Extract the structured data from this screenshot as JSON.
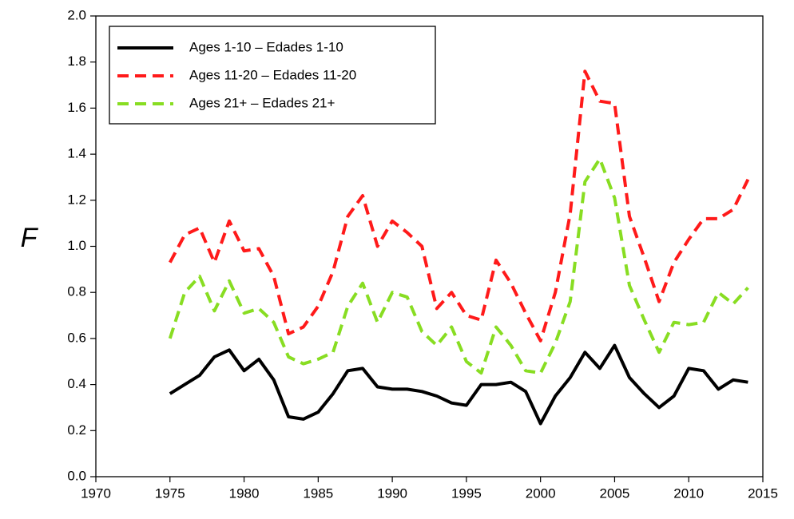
{
  "chart_data": {
    "type": "line",
    "ylabel": "F",
    "x": [
      1975,
      1976,
      1977,
      1978,
      1979,
      1980,
      1981,
      1982,
      1983,
      1984,
      1985,
      1986,
      1987,
      1988,
      1989,
      1990,
      1991,
      1992,
      1993,
      1994,
      1995,
      1996,
      1997,
      1998,
      1999,
      2000,
      2001,
      2002,
      2003,
      2004,
      2005,
      2006,
      2007,
      2008,
      2009,
      2010,
      2011,
      2012,
      2013,
      2014
    ],
    "series": [
      {
        "name": "Ages 1-10 – Edades 1-10",
        "color": "#000000",
        "linestyle": "solid",
        "values": [
          0.36,
          0.4,
          0.44,
          0.52,
          0.55,
          0.46,
          0.51,
          0.42,
          0.26,
          0.25,
          0.28,
          0.36,
          0.46,
          0.47,
          0.39,
          0.38,
          0.38,
          0.37,
          0.35,
          0.32,
          0.31,
          0.4,
          0.4,
          0.41,
          0.37,
          0.23,
          0.35,
          0.43,
          0.54,
          0.47,
          0.57,
          0.43,
          0.36,
          0.3,
          0.35,
          0.47,
          0.46,
          0.38,
          0.42,
          0.41
        ]
      },
      {
        "name": "Ages 11-20 – Edades 11-20",
        "color": "#ff1a1a",
        "linestyle": "dashed",
        "values": [
          0.93,
          1.05,
          1.08,
          0.93,
          1.11,
          0.98,
          0.99,
          0.87,
          0.62,
          0.65,
          0.74,
          0.89,
          1.13,
          1.22,
          1.0,
          1.11,
          1.06,
          1.0,
          0.73,
          0.8,
          0.7,
          0.68,
          0.94,
          0.84,
          0.71,
          0.59,
          0.8,
          1.14,
          1.76,
          1.63,
          1.62,
          1.13,
          0.95,
          0.76,
          0.93,
          1.03,
          1.12,
          1.12,
          1.16,
          1.29
        ]
      },
      {
        "name": "Ages 21+ – Edades 21+",
        "color": "#88dd22",
        "linestyle": "dashed",
        "values": [
          0.6,
          0.8,
          0.87,
          0.72,
          0.85,
          0.71,
          0.73,
          0.67,
          0.52,
          0.49,
          0.51,
          0.54,
          0.74,
          0.84,
          0.67,
          0.8,
          0.78,
          0.63,
          0.57,
          0.65,
          0.5,
          0.45,
          0.65,
          0.57,
          0.46,
          0.45,
          0.58,
          0.76,
          1.28,
          1.38,
          1.21,
          0.83,
          0.68,
          0.54,
          0.67,
          0.66,
          0.67,
          0.8,
          0.75,
          0.82
        ]
      }
    ],
    "xlim": [
      1970,
      2015
    ],
    "xticks": [
      1970,
      1975,
      1980,
      1985,
      1990,
      1995,
      2000,
      2005,
      2010,
      2015
    ],
    "ylim": [
      0,
      2
    ],
    "yticks": [
      {
        "value": 0,
        "label": "0.0"
      },
      0.2,
      0.4,
      0.6,
      0.8,
      {
        "value": 1,
        "label": "1.0"
      },
      1.2,
      1.4,
      1.6,
      1.8,
      {
        "value": 2,
        "label": "2.0"
      }
    ],
    "legend": "upper left"
  }
}
